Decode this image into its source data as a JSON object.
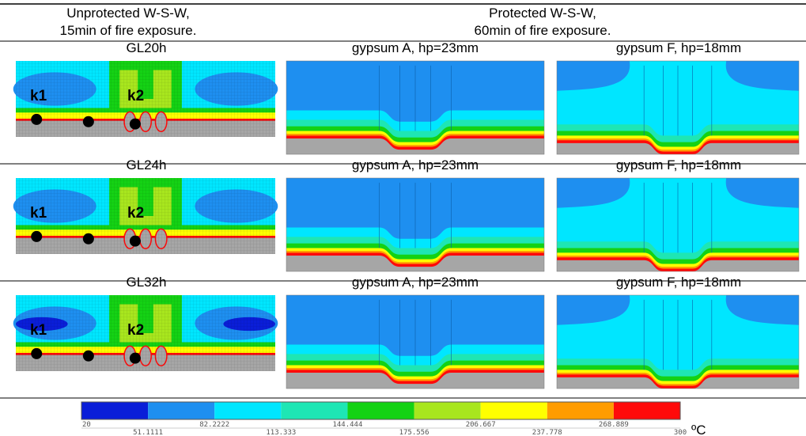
{
  "header": {
    "left": [
      "Unprotected W-S-W,",
      "15min of fire exposure."
    ],
    "right": [
      "Protected W-S-W,",
      "60min of fire exposure."
    ]
  },
  "rows": [
    {
      "labels": [
        "GL20h",
        "gypsum A, hp=23mm",
        "gypsum F, hp=18mm"
      ],
      "markers": [
        "k1",
        "k2"
      ]
    },
    {
      "labels": [
        "GL24h",
        "gypsum A, hp=23mm",
        "gypsum F, hp=18mm"
      ],
      "markers": [
        "k1",
        "k2"
      ]
    },
    {
      "labels": [
        "GL32h",
        "gypsum A, hp=23mm",
        "gypsum F, hp=18mm"
      ],
      "markers": [
        "k1",
        "k2"
      ]
    }
  ],
  "legend": {
    "colors": [
      "#0a1ed8",
      "#1e8ff0",
      "#00e6ff",
      "#1ee6b4",
      "#14d214",
      "#a8e61e",
      "#ffff00",
      "#ff9c00",
      "#ff0a0a"
    ],
    "labels": [
      20,
      51.1111,
      82.2222,
      113.333,
      144.444,
      175.556,
      206.667,
      237.778,
      268.889,
      300
    ],
    "unit": "ºC"
  }
}
